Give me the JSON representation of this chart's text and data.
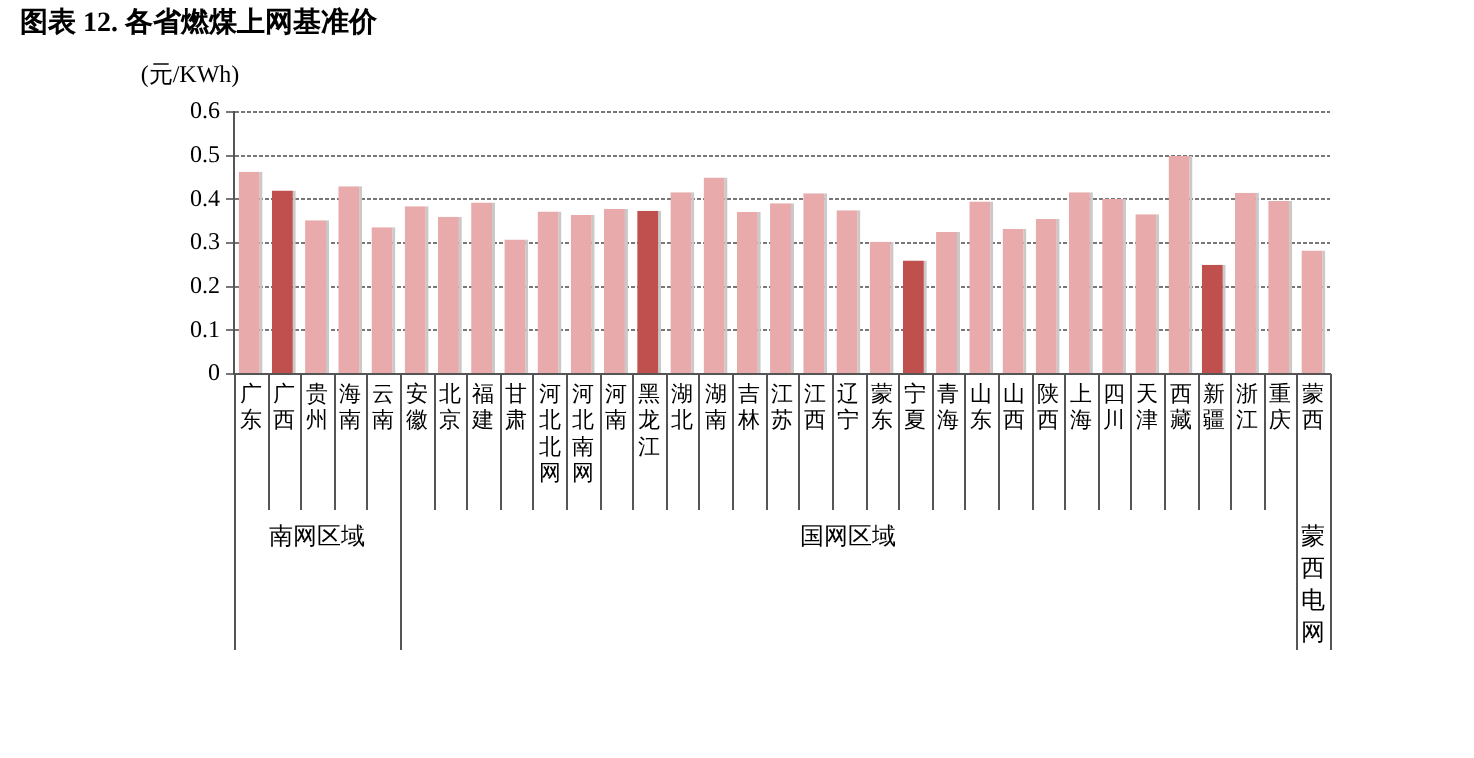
{
  "chart_data": {
    "type": "bar",
    "title": "图表 12. 各省燃煤上网基准价",
    "ylabel": "(元/KWh)",
    "categories": [
      "广东",
      "广西",
      "贵州",
      "海南",
      "云南",
      "安徽",
      "北京",
      "福建",
      "甘肃",
      "河北北网",
      "河北南网",
      "河南",
      "黑龙江",
      "湖北",
      "湖南",
      "吉林",
      "江苏",
      "江西",
      "辽宁",
      "蒙东",
      "宁夏",
      "青海",
      "山东",
      "山西",
      "陕西",
      "上海",
      "四川",
      "天津",
      "西藏",
      "新疆",
      "浙江",
      "重庆",
      "蒙西"
    ],
    "values": [
      0.463,
      0.42,
      0.352,
      0.43,
      0.336,
      0.384,
      0.36,
      0.393,
      0.308,
      0.372,
      0.364,
      0.378,
      0.374,
      0.416,
      0.45,
      0.371,
      0.391,
      0.414,
      0.375,
      0.303,
      0.26,
      0.325,
      0.395,
      0.332,
      0.355,
      0.416,
      0.401,
      0.366,
      0.499,
      0.25,
      0.415,
      0.396,
      0.283
    ],
    "colors": [
      "#e8aaaa",
      "#c0504d",
      "#e8aaaa",
      "#e8aaaa",
      "#e8aaaa",
      "#e8aaaa",
      "#e8aaaa",
      "#e8aaaa",
      "#e8aaaa",
      "#e8aaaa",
      "#e8aaaa",
      "#e8aaaa",
      "#c0504d",
      "#e8aaaa",
      "#e8aaaa",
      "#e8aaaa",
      "#e8aaaa",
      "#e8aaaa",
      "#e8aaaa",
      "#e8aaaa",
      "#c0504d",
      "#e8aaaa",
      "#e8aaaa",
      "#e8aaaa",
      "#e8aaaa",
      "#e8aaaa",
      "#e8aaaa",
      "#e8aaaa",
      "#e8aaaa",
      "#c0504d",
      "#e8aaaa",
      "#e8aaaa",
      "#e8aaaa"
    ],
    "ylim": [
      0,
      0.6
    ],
    "yticks": [
      0,
      0.1,
      0.2,
      0.3,
      0.4,
      0.5,
      0.6
    ],
    "grid": "y",
    "legend": false,
    "annotations": [
      "南网区域",
      "国网区域",
      "蒙西电网"
    ]
  }
}
